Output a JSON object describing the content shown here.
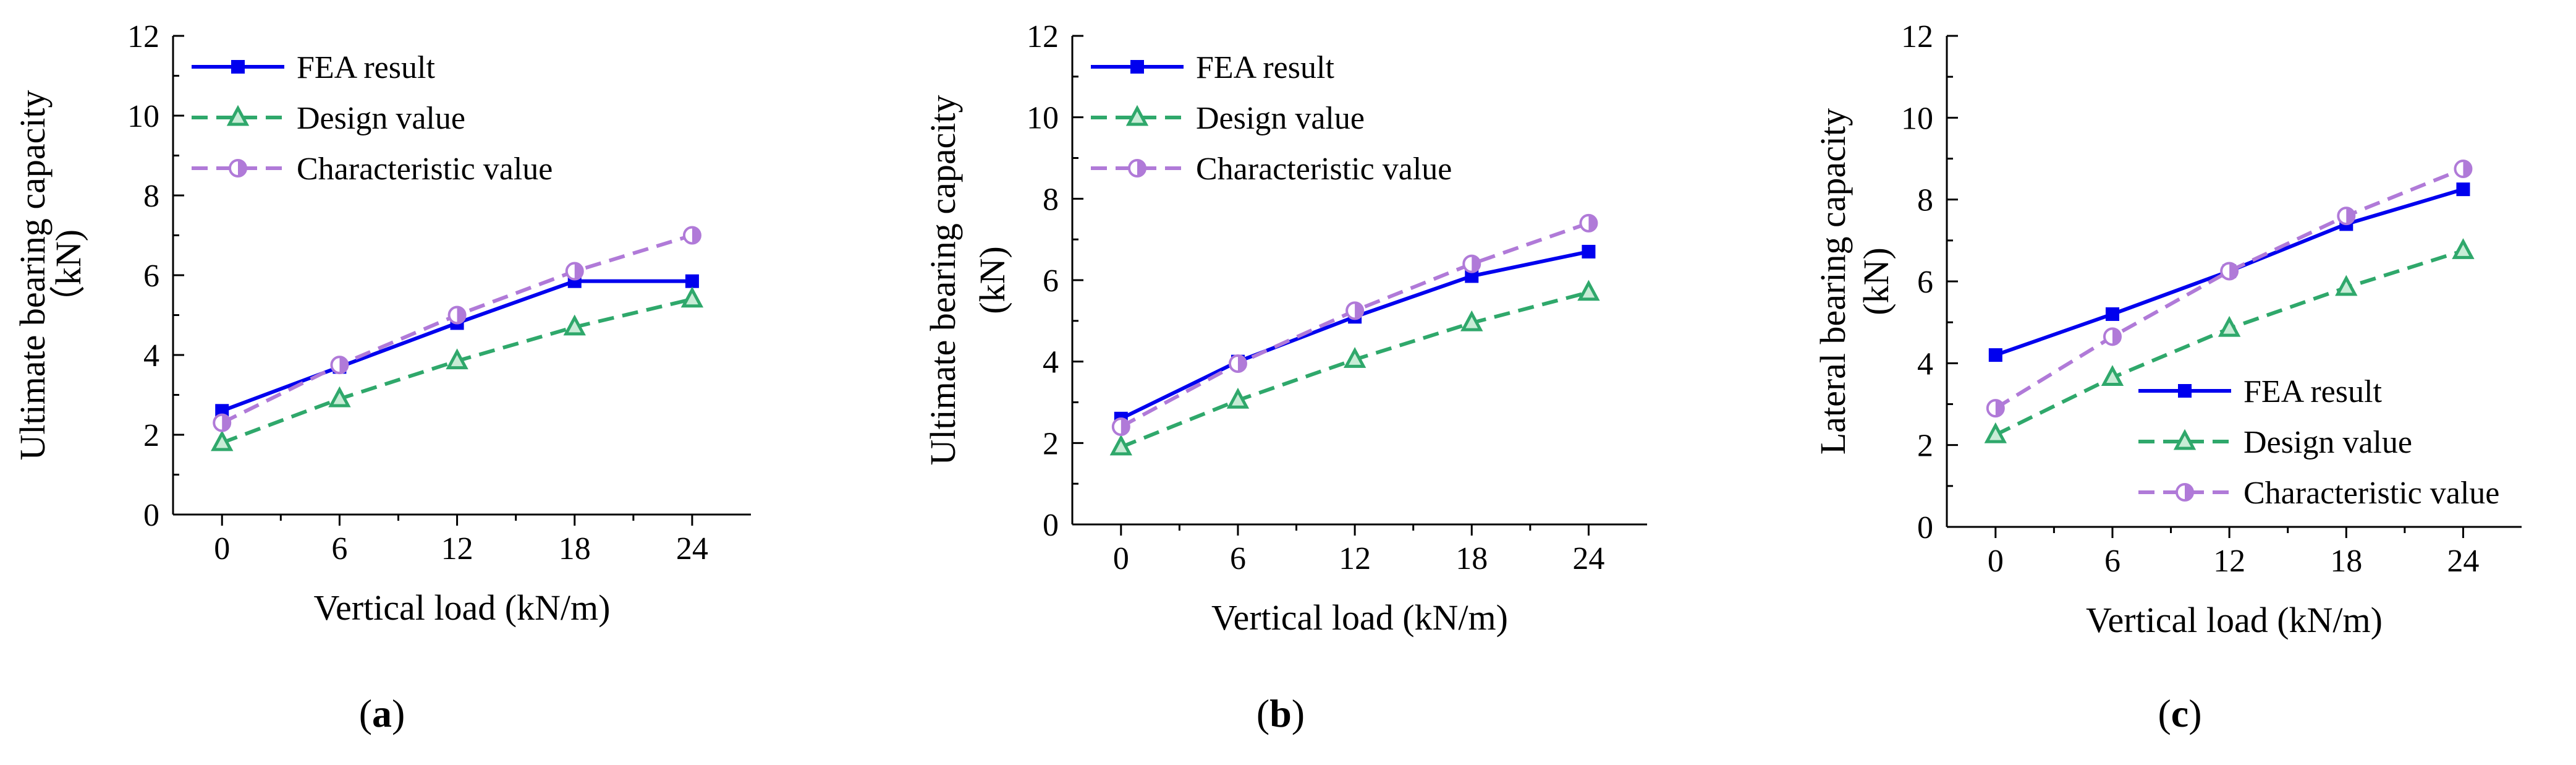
{
  "chart_data": [
    {
      "type": "line",
      "panel_label": "a",
      "xlabel": "Vertical load (kN/m)",
      "ylabel_line1": "Ultimate bearing capacity",
      "ylabel_line2": "（kN)",
      "categories": [
        "0",
        "6",
        "12",
        "18",
        "24"
      ],
      "x": [
        0,
        6,
        12,
        18,
        24
      ],
      "xlim": [
        -2.5,
        27
      ],
      "ylim": [
        0,
        12
      ],
      "yticks": [
        "0",
        "2",
        "4",
        "6",
        "8",
        "10",
        "12"
      ],
      "legend_position": "top-left",
      "series": [
        {
          "name": "FEA result",
          "values": [
            2.6,
            3.7,
            4.8,
            5.85,
            5.85
          ],
          "color": "#0000ee",
          "style": "solid",
          "marker": "square"
        },
        {
          "name": "Design  value",
          "values": [
            1.8,
            2.9,
            3.85,
            4.7,
            5.4
          ],
          "color": "#2fa86b",
          "style": "dashed",
          "marker": "triangle"
        },
        {
          "name": "Characteristic value",
          "values": [
            2.3,
            3.75,
            5.0,
            6.1,
            7.0
          ],
          "color": "#b07ad8",
          "style": "dashed",
          "marker": "halfcircle"
        }
      ]
    },
    {
      "type": "line",
      "panel_label": "b",
      "xlabel": "Vertical load (kN/m)",
      "ylabel_line1": "Ultimate bearing capacity",
      "ylabel_line2": "(kN)",
      "categories": [
        "0",
        "6",
        "12",
        "18",
        "24"
      ],
      "x": [
        0,
        6,
        12,
        18,
        24
      ],
      "xlim": [
        -2.5,
        27
      ],
      "ylim": [
        0,
        12
      ],
      "yticks": [
        "0",
        "2",
        "4",
        "6",
        "8",
        "10",
        "12"
      ],
      "legend_position": "top-left",
      "series": [
        {
          "name": "FEA result",
          "values": [
            2.6,
            4.0,
            5.1,
            6.1,
            6.7
          ],
          "color": "#0000ee",
          "style": "solid",
          "marker": "square"
        },
        {
          "name": "Design  value",
          "values": [
            1.9,
            3.05,
            4.05,
            4.95,
            5.7
          ],
          "color": "#2fa86b",
          "style": "dashed",
          "marker": "triangle"
        },
        {
          "name": "Characteristic value",
          "values": [
            2.4,
            3.95,
            5.25,
            6.4,
            7.4
          ],
          "color": "#b07ad8",
          "style": "dashed",
          "marker": "halfcircle"
        }
      ]
    },
    {
      "type": "line",
      "panel_label": "c",
      "xlabel": "Vertical load (kN/m)",
      "ylabel_line1": "Lateral bearing capacity",
      "ylabel_line2": "(kN)",
      "categories": [
        "0",
        "6",
        "12",
        "18",
        "24"
      ],
      "x": [
        0,
        6,
        12,
        18,
        24
      ],
      "xlim": [
        -2.5,
        27
      ],
      "ylim": [
        0,
        12
      ],
      "yticks": [
        "0",
        "2",
        "4",
        "6",
        "8",
        "10",
        "12"
      ],
      "legend_position": "bottom-right",
      "series": [
        {
          "name": "FEA result",
          "values": [
            4.2,
            5.2,
            6.25,
            7.4,
            8.25
          ],
          "color": "#0000ee",
          "style": "solid",
          "marker": "square"
        },
        {
          "name": "Design  value",
          "values": [
            2.25,
            3.65,
            4.85,
            5.85,
            6.75
          ],
          "color": "#2fa86b",
          "style": "dashed",
          "marker": "triangle"
        },
        {
          "name": "Characteristic value",
          "values": [
            2.9,
            4.65,
            6.25,
            7.6,
            8.75
          ],
          "color": "#b07ad8",
          "style": "dashed",
          "marker": "halfcircle"
        }
      ]
    }
  ]
}
